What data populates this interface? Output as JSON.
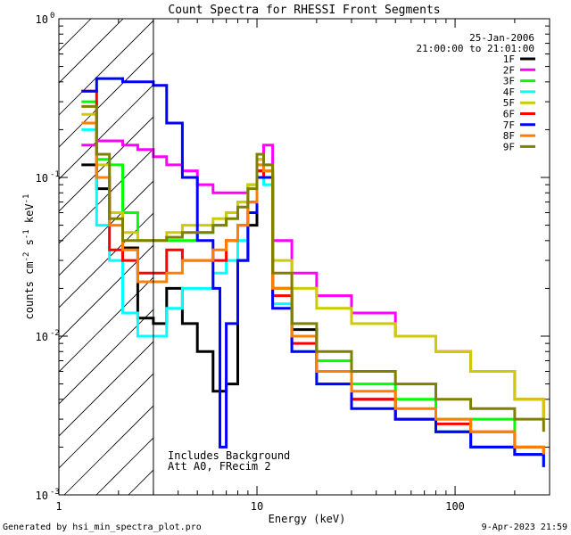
{
  "chart_data": {
    "type": "line",
    "title": "Count Spectra for RHESSI Front Segments",
    "xlabel": "Energy (keV)",
    "ylabel": "counts cm",
    "ylabel_sup1": "-2",
    "ylabel_mid": " s",
    "ylabel_sup2": "-1",
    "ylabel_end": " keV",
    "ylabel_sup3": "-1",
    "xscale": "log",
    "yscale": "log",
    "xlim": [
      1,
      300
    ],
    "ylim": [
      0.001,
      1
    ],
    "x_ticks": [
      {
        "value": 1,
        "label": "1"
      },
      {
        "value": 10,
        "label": "10"
      },
      {
        "value": 100,
        "label": "100"
      }
    ],
    "y_ticks": [
      {
        "value": 1,
        "base": "10",
        "exp": "0"
      },
      {
        "value": 0.1,
        "base": "10",
        "exp": "-1"
      },
      {
        "value": 0.01,
        "base": "10",
        "exp": "-2"
      },
      {
        "value": 0.001,
        "base": "10",
        "exp": "-3"
      }
    ],
    "hatched_region": [
      1,
      3
    ],
    "date_label": "25-Jan-2006",
    "time_range_label": "21:00:00 to 21:01:00",
    "annotations": [
      "Includes Background",
      "Att A0, FRecim 2"
    ],
    "footer_left": "Generated by hsi_min_spectra_plot.pro",
    "footer_right": "9-Apr-2023 21:59",
    "series": [
      {
        "name": "1F",
        "color": "#000000",
        "points": [
          [
            1.3,
            0.12
          ],
          [
            1.55,
            0.085
          ],
          [
            1.8,
            0.06
          ],
          [
            2.1,
            0.036
          ],
          [
            2.5,
            0.013
          ],
          [
            3.0,
            0.012
          ],
          [
            3.5,
            0.02
          ],
          [
            4.2,
            0.012
          ],
          [
            5.0,
            0.008
          ],
          [
            6.0,
            0.0045
          ],
          [
            7.0,
            0.005
          ],
          [
            8.0,
            0.03
          ],
          [
            9.0,
            0.05
          ],
          [
            10.0,
            0.11
          ],
          [
            10.8,
            0.11
          ],
          [
            12.0,
            0.02
          ],
          [
            15.0,
            0.011
          ],
          [
            20.0,
            0.006
          ],
          [
            30.0,
            0.004
          ],
          [
            50.0,
            0.003
          ],
          [
            80.0,
            0.0025
          ],
          [
            120.0,
            0.002
          ],
          [
            200.0,
            0.0018
          ],
          [
            280.0,
            0.0015
          ]
        ]
      },
      {
        "name": "2F",
        "color": "#ff00ff",
        "points": [
          [
            1.3,
            0.16
          ],
          [
            1.55,
            0.17
          ],
          [
            1.8,
            0.17
          ],
          [
            2.1,
            0.16
          ],
          [
            2.5,
            0.15
          ],
          [
            3.0,
            0.135
          ],
          [
            3.5,
            0.12
          ],
          [
            4.2,
            0.11
          ],
          [
            5.0,
            0.09
          ],
          [
            6.0,
            0.08
          ],
          [
            7.0,
            0.08
          ],
          [
            8.0,
            0.08
          ],
          [
            9.0,
            0.09
          ],
          [
            10.0,
            0.13
          ],
          [
            10.8,
            0.16
          ],
          [
            12.0,
            0.04
          ],
          [
            15.0,
            0.025
          ],
          [
            20.0,
            0.018
          ],
          [
            30.0,
            0.014
          ],
          [
            50.0,
            0.01
          ],
          [
            80.0,
            0.008
          ],
          [
            120.0,
            0.006
          ],
          [
            200.0,
            0.004
          ],
          [
            280.0,
            0.003
          ]
        ]
      },
      {
        "name": "3F",
        "color": "#00ff00",
        "points": [
          [
            1.3,
            0.3
          ],
          [
            1.55,
            0.13
          ],
          [
            1.8,
            0.12
          ],
          [
            2.1,
            0.06
          ],
          [
            2.5,
            0.04
          ],
          [
            3.0,
            0.04
          ],
          [
            3.5,
            0.04
          ],
          [
            4.2,
            0.04
          ],
          [
            5.0,
            0.045
          ],
          [
            6.0,
            0.05
          ],
          [
            7.0,
            0.06
          ],
          [
            8.0,
            0.07
          ],
          [
            9.0,
            0.09
          ],
          [
            10.0,
            0.12
          ],
          [
            10.8,
            0.11
          ],
          [
            12.0,
            0.02
          ],
          [
            15.0,
            0.01
          ],
          [
            20.0,
            0.007
          ],
          [
            30.0,
            0.005
          ],
          [
            50.0,
            0.004
          ],
          [
            80.0,
            0.003
          ],
          [
            120.0,
            0.003
          ],
          [
            200.0,
            0.002
          ],
          [
            280.0,
            0.002
          ]
        ]
      },
      {
        "name": "4F",
        "color": "#00ffff",
        "points": [
          [
            1.3,
            0.2
          ],
          [
            1.55,
            0.05
          ],
          [
            1.8,
            0.03
          ],
          [
            2.1,
            0.014
          ],
          [
            2.5,
            0.01
          ],
          [
            3.0,
            0.01
          ],
          [
            3.5,
            0.015
          ],
          [
            4.2,
            0.02
          ],
          [
            5.0,
            0.02
          ],
          [
            6.0,
            0.025
          ],
          [
            7.0,
            0.03
          ],
          [
            8.0,
            0.04
          ],
          [
            9.0,
            0.06
          ],
          [
            10.0,
            0.1
          ],
          [
            10.8,
            0.09
          ],
          [
            12.0,
            0.016
          ],
          [
            15.0,
            0.008
          ],
          [
            20.0,
            0.005
          ],
          [
            30.0,
            0.004
          ],
          [
            50.0,
            0.003
          ],
          [
            80.0,
            0.0025
          ],
          [
            120.0,
            0.002
          ],
          [
            200.0,
            0.0018
          ],
          [
            280.0,
            0.0015
          ]
        ]
      },
      {
        "name": "5F",
        "color": "#cccc00",
        "points": [
          [
            1.3,
            0.25
          ],
          [
            1.55,
            0.12
          ],
          [
            1.8,
            0.06
          ],
          [
            2.1,
            0.045
          ],
          [
            2.5,
            0.04
          ],
          [
            3.0,
            0.04
          ],
          [
            3.5,
            0.045
          ],
          [
            4.2,
            0.05
          ],
          [
            5.0,
            0.05
          ],
          [
            6.0,
            0.055
          ],
          [
            7.0,
            0.06
          ],
          [
            8.0,
            0.07
          ],
          [
            9.0,
            0.09
          ],
          [
            10.0,
            0.13
          ],
          [
            10.8,
            0.12
          ],
          [
            12.0,
            0.03
          ],
          [
            15.0,
            0.02
          ],
          [
            20.0,
            0.015
          ],
          [
            30.0,
            0.012
          ],
          [
            50.0,
            0.01
          ],
          [
            80.0,
            0.008
          ],
          [
            120.0,
            0.006
          ],
          [
            200.0,
            0.004
          ],
          [
            280.0,
            0.003
          ]
        ]
      },
      {
        "name": "6F",
        "color": "#ff0000",
        "points": [
          [
            1.3,
            0.35
          ],
          [
            1.55,
            0.1
          ],
          [
            1.8,
            0.035
          ],
          [
            2.1,
            0.03
          ],
          [
            2.5,
            0.025
          ],
          [
            3.0,
            0.025
          ],
          [
            3.5,
            0.035
          ],
          [
            4.2,
            0.03
          ],
          [
            5.0,
            0.03
          ],
          [
            6.0,
            0.03
          ],
          [
            7.0,
            0.04
          ],
          [
            8.0,
            0.05
          ],
          [
            9.0,
            0.07
          ],
          [
            10.0,
            0.11
          ],
          [
            10.8,
            0.1
          ],
          [
            12.0,
            0.018
          ],
          [
            15.0,
            0.009
          ],
          [
            20.0,
            0.006
          ],
          [
            30.0,
            0.004
          ],
          [
            50.0,
            0.003
          ],
          [
            80.0,
            0.0028
          ],
          [
            120.0,
            0.0025
          ],
          [
            200.0,
            0.002
          ],
          [
            280.0,
            0.0018
          ]
        ]
      },
      {
        "name": "7F",
        "color": "#0000ff",
        "points": [
          [
            1.3,
            0.35
          ],
          [
            1.55,
            0.42
          ],
          [
            1.8,
            0.42
          ],
          [
            2.1,
            0.4
          ],
          [
            2.5,
            0.4
          ],
          [
            3.0,
            0.38
          ],
          [
            3.5,
            0.22
          ],
          [
            4.2,
            0.1
          ],
          [
            5.0,
            0.04
          ],
          [
            6.0,
            0.02
          ],
          [
            6.5,
            0.002
          ],
          [
            7.0,
            0.012
          ],
          [
            8.0,
            0.03
          ],
          [
            9.0,
            0.06
          ],
          [
            10.0,
            0.1
          ],
          [
            10.8,
            0.1
          ],
          [
            12.0,
            0.015
          ],
          [
            15.0,
            0.008
          ],
          [
            20.0,
            0.005
          ],
          [
            30.0,
            0.0035
          ],
          [
            50.0,
            0.003
          ],
          [
            80.0,
            0.0025
          ],
          [
            120.0,
            0.002
          ],
          [
            200.0,
            0.0018
          ],
          [
            280.0,
            0.0015
          ]
        ]
      },
      {
        "name": "8F",
        "color": "#ff8000",
        "points": [
          [
            1.3,
            0.22
          ],
          [
            1.55,
            0.1
          ],
          [
            1.8,
            0.05
          ],
          [
            2.1,
            0.035
          ],
          [
            2.5,
            0.022
          ],
          [
            3.0,
            0.022
          ],
          [
            3.5,
            0.025
          ],
          [
            4.2,
            0.03
          ],
          [
            5.0,
            0.03
          ],
          [
            6.0,
            0.035
          ],
          [
            7.0,
            0.04
          ],
          [
            8.0,
            0.05
          ],
          [
            9.0,
            0.07
          ],
          [
            10.0,
            0.12
          ],
          [
            10.8,
            0.11
          ],
          [
            12.0,
            0.02
          ],
          [
            15.0,
            0.01
          ],
          [
            20.0,
            0.006
          ],
          [
            30.0,
            0.0045
          ],
          [
            50.0,
            0.0035
          ],
          [
            80.0,
            0.003
          ],
          [
            120.0,
            0.0025
          ],
          [
            200.0,
            0.002
          ],
          [
            280.0,
            0.0018
          ]
        ]
      },
      {
        "name": "9F",
        "color": "#808000",
        "points": [
          [
            1.3,
            0.28
          ],
          [
            1.55,
            0.14
          ],
          [
            1.8,
            0.055
          ],
          [
            2.1,
            0.04
          ],
          [
            2.5,
            0.04
          ],
          [
            3.0,
            0.04
          ],
          [
            3.5,
            0.042
          ],
          [
            4.2,
            0.045
          ],
          [
            5.0,
            0.045
          ],
          [
            6.0,
            0.05
          ],
          [
            7.0,
            0.055
          ],
          [
            8.0,
            0.065
          ],
          [
            9.0,
            0.085
          ],
          [
            10.0,
            0.14
          ],
          [
            10.8,
            0.12
          ],
          [
            12.0,
            0.025
          ],
          [
            15.0,
            0.012
          ],
          [
            20.0,
            0.008
          ],
          [
            30.0,
            0.006
          ],
          [
            50.0,
            0.005
          ],
          [
            80.0,
            0.004
          ],
          [
            120.0,
            0.0035
          ],
          [
            200.0,
            0.003
          ],
          [
            280.0,
            0.0025
          ]
        ]
      }
    ]
  }
}
